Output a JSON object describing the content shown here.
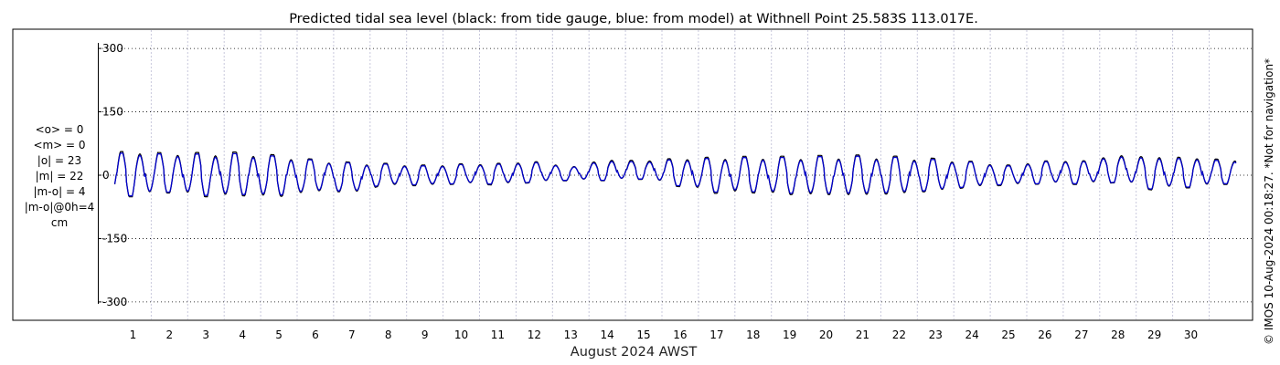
{
  "chart_data": {
    "type": "line",
    "title": "Predicted tidal sea level (black: from tide gauge, blue: from model) at Withnell Point 25.583S 113.017E.",
    "xlabel": "August 2024 AWST",
    "ylabel": "",
    "x_ticks": [
      "1",
      "2",
      "3",
      "4",
      "5",
      "6",
      "7",
      "8",
      "9",
      "10",
      "11",
      "12",
      "13",
      "14",
      "15",
      "16",
      "17",
      "18",
      "19",
      "20",
      "21",
      "22",
      "23",
      "24",
      "25",
      "26",
      "27",
      "28",
      "29",
      "30"
    ],
    "y_ticks": [
      "300",
      "150",
      "0",
      "-150",
      "-300"
    ],
    "xlim": [
      0,
      30.75
    ],
    "ylim": [
      -300,
      300
    ],
    "grid": true,
    "stats_text": [
      "<o> = 0",
      "<m> = 0",
      "|o| = 23",
      "|m| = 22",
      "|m-o| = 4",
      "|m-o|@0h=4",
      "cm"
    ],
    "credit": "© IMOS 10-Aug-2024 00:18:27. *Not for navigation*",
    "colors": {
      "gauge": "#000000",
      "model": "#0000cc",
      "grid_vertical": "#c8c8dc",
      "grid_horizontal": "#000000"
    },
    "series": [
      {
        "name": "tide gauge",
        "color": "#000000",
        "day_ranges": [
          [
            56,
            -51
          ],
          [
            53,
            -42
          ],
          [
            54,
            -51
          ],
          [
            55,
            -49
          ],
          [
            48,
            -50
          ],
          [
            38,
            -37
          ],
          [
            31,
            -40
          ],
          [
            28,
            -24
          ],
          [
            24,
            -25
          ],
          [
            27,
            -21
          ],
          [
            28,
            -23
          ],
          [
            32,
            -18
          ],
          [
            20,
            -13
          ],
          [
            36,
            -13
          ],
          [
            35,
            -10
          ],
          [
            40,
            -27
          ],
          [
            43,
            -43
          ],
          [
            45,
            -42
          ],
          [
            45,
            -46
          ],
          [
            47,
            -46
          ],
          [
            48,
            -46
          ],
          [
            45,
            -44
          ],
          [
            40,
            -38
          ],
          [
            33,
            -29
          ],
          [
            24,
            -24
          ],
          [
            34,
            -21
          ],
          [
            34,
            -22
          ],
          [
            46,
            -18
          ],
          [
            43,
            -35
          ],
          [
            42,
            -30
          ],
          [
            37,
            -22
          ]
        ]
      },
      {
        "name": "model",
        "color": "#0000cc",
        "day_ranges": [
          [
            52,
            -49
          ],
          [
            50,
            -40
          ],
          [
            50,
            -48
          ],
          [
            51,
            -46
          ],
          [
            45,
            -47
          ],
          [
            36,
            -35
          ],
          [
            29,
            -38
          ],
          [
            26,
            -22
          ],
          [
            22,
            -23
          ],
          [
            25,
            -20
          ],
          [
            26,
            -21
          ],
          [
            30,
            -17
          ],
          [
            19,
            -12
          ],
          [
            33,
            -12
          ],
          [
            32,
            -9
          ],
          [
            37,
            -25
          ],
          [
            40,
            -40
          ],
          [
            42,
            -39
          ],
          [
            42,
            -43
          ],
          [
            44,
            -43
          ],
          [
            45,
            -43
          ],
          [
            42,
            -41
          ],
          [
            37,
            -36
          ],
          [
            31,
            -27
          ],
          [
            22,
            -22
          ],
          [
            32,
            -20
          ],
          [
            32,
            -20
          ],
          [
            43,
            -17
          ],
          [
            40,
            -33
          ],
          [
            39,
            -28
          ],
          [
            34,
            -20
          ]
        ]
      }
    ]
  }
}
